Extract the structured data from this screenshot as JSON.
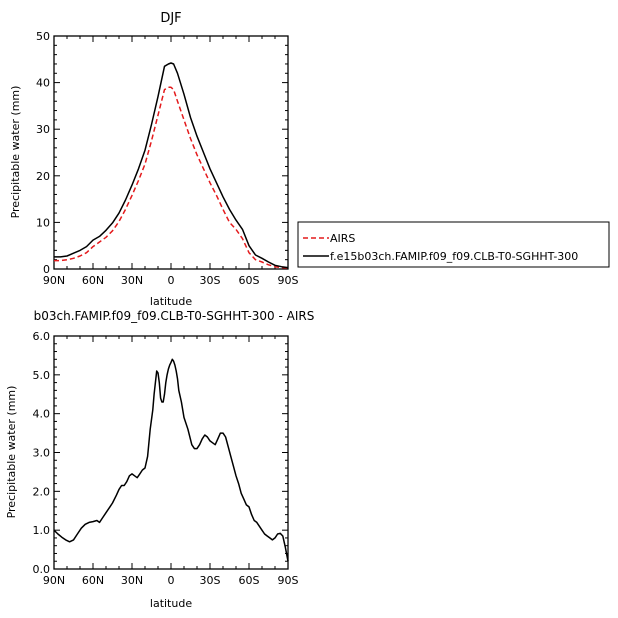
{
  "chart_data": [
    {
      "type": "line",
      "title": "DJF",
      "xlabel": "latitude",
      "ylabel": "Precipitable water (mm)",
      "xlim": [
        90,
        -90
      ],
      "ylim": [
        0,
        50
      ],
      "x_ticks": [
        90,
        60,
        30,
        0,
        -30,
        -60,
        -90
      ],
      "x_tick_labels": [
        "90N",
        "60N",
        "30N",
        "0",
        "30S",
        "60S",
        "90S"
      ],
      "y_ticks": [
        0,
        10,
        20,
        30,
        40,
        50
      ],
      "y_tick_labels": [
        "0",
        "10",
        "20",
        "30",
        "40",
        "50"
      ],
      "legend_position": "right",
      "series": [
        {
          "name": "AIRS",
          "color": "#e41a1c",
          "dash": "dashed",
          "x": [
            90,
            85,
            80,
            75,
            70,
            65,
            60,
            55,
            50,
            45,
            40,
            35,
            30,
            25,
            20,
            15,
            10,
            5,
            2,
            0,
            -2,
            -5,
            -10,
            -15,
            -20,
            -25,
            -30,
            -35,
            -40,
            -45,
            -50,
            -55,
            -60,
            -65,
            -70,
            -75,
            -80,
            -85,
            -90
          ],
          "values": [
            1.8,
            1.8,
            2.0,
            2.3,
            2.8,
            3.5,
            4.8,
            5.8,
            6.8,
            8.2,
            10.2,
            12.8,
            15.8,
            19.0,
            22.5,
            27.5,
            33.0,
            38.5,
            39.0,
            39.0,
            38.5,
            36.0,
            32.0,
            28.0,
            24.5,
            21.5,
            18.5,
            15.8,
            12.8,
            10.0,
            8.5,
            6.5,
            3.5,
            2.0,
            1.5,
            0.9,
            0.5,
            0.3,
            0.2
          ]
        },
        {
          "name": "f.e15b03ch.FAMIP.f09_f09.CLB-T0-SGHHT-300",
          "color": "#000000",
          "dash": "solid",
          "x": [
            90,
            85,
            80,
            75,
            70,
            65,
            60,
            55,
            50,
            45,
            40,
            35,
            30,
            25,
            20,
            15,
            10,
            5,
            2,
            0,
            -2,
            -5,
            -10,
            -15,
            -20,
            -25,
            -30,
            -35,
            -40,
            -45,
            -50,
            -55,
            -60,
            -65,
            -70,
            -75,
            -80,
            -85,
            -90
          ],
          "values": [
            2.6,
            2.6,
            2.8,
            3.4,
            4.0,
            4.8,
            6.2,
            7.0,
            8.3,
            9.9,
            12.0,
            14.8,
            18.0,
            21.5,
            25.5,
            31.0,
            37.0,
            43.5,
            44.0,
            44.2,
            44.0,
            42.0,
            37.5,
            32.5,
            28.5,
            25.0,
            21.5,
            18.5,
            15.5,
            12.8,
            10.5,
            8.5,
            5.0,
            3.0,
            2.3,
            1.5,
            0.8,
            0.5,
            0.3
          ]
        }
      ]
    },
    {
      "type": "line",
      "title": "b03ch.FAMIP.f09_f09.CLB-T0-SGHHT-300 - AIRS",
      "xlabel": "latitude",
      "ylabel": "Precipitable water (mm)",
      "xlim": [
        90,
        -90
      ],
      "ylim": [
        0,
        6
      ],
      "x_ticks": [
        90,
        60,
        30,
        0,
        -30,
        -60,
        -90
      ],
      "x_tick_labels": [
        "90N",
        "60N",
        "30N",
        "0",
        "30S",
        "60S",
        "90S"
      ],
      "y_ticks": [
        0,
        1,
        2,
        3,
        4,
        5,
        6
      ],
      "y_tick_labels": [
        "0.0",
        "1.0",
        "2.0",
        "3.0",
        "4.0",
        "5.0",
        "6.0"
      ],
      "series": [
        {
          "color": "#000000",
          "dash": "solid",
          "x": [
            90,
            87,
            84,
            81,
            78,
            75,
            72,
            69,
            66,
            63,
            60,
            57,
            55,
            53,
            50,
            47,
            45,
            42,
            40,
            38,
            36,
            34,
            32,
            30,
            28,
            26,
            24,
            22,
            20,
            18,
            16,
            14,
            13,
            12,
            11,
            10,
            9,
            8,
            7,
            6,
            5,
            4,
            3,
            2,
            1,
            0,
            -1,
            -2,
            -3,
            -4,
            -5,
            -6,
            -8,
            -10,
            -13,
            -16,
            -18,
            -20,
            -22,
            -24,
            -26,
            -28,
            -30,
            -32,
            -34,
            -36,
            -38,
            -40,
            -42,
            -44,
            -46,
            -48,
            -50,
            -52,
            -54,
            -56,
            -58,
            -60,
            -62,
            -64,
            -66,
            -68,
            -70,
            -72,
            -74,
            -76,
            -78,
            -80,
            -82,
            -84,
            -86,
            -88,
            -90
          ],
          "values": [
            1.0,
            0.9,
            0.82,
            0.75,
            0.7,
            0.75,
            0.9,
            1.05,
            1.15,
            1.2,
            1.22,
            1.25,
            1.2,
            1.3,
            1.45,
            1.6,
            1.7,
            1.9,
            2.05,
            2.15,
            2.15,
            2.25,
            2.4,
            2.45,
            2.4,
            2.35,
            2.45,
            2.55,
            2.6,
            2.9,
            3.6,
            4.1,
            4.5,
            4.8,
            5.1,
            5.05,
            4.8,
            4.4,
            4.3,
            4.3,
            4.5,
            4.8,
            5.0,
            5.15,
            5.25,
            5.32,
            5.4,
            5.35,
            5.25,
            5.1,
            4.9,
            4.6,
            4.3,
            3.9,
            3.6,
            3.2,
            3.1,
            3.1,
            3.2,
            3.35,
            3.45,
            3.4,
            3.3,
            3.25,
            3.2,
            3.35,
            3.5,
            3.5,
            3.4,
            3.15,
            2.9,
            2.65,
            2.4,
            2.2,
            1.95,
            1.8,
            1.65,
            1.6,
            1.4,
            1.25,
            1.2,
            1.1,
            1.0,
            0.9,
            0.85,
            0.8,
            0.75,
            0.8,
            0.9,
            0.92,
            0.85,
            0.55,
            0.2
          ]
        }
      ]
    }
  ]
}
